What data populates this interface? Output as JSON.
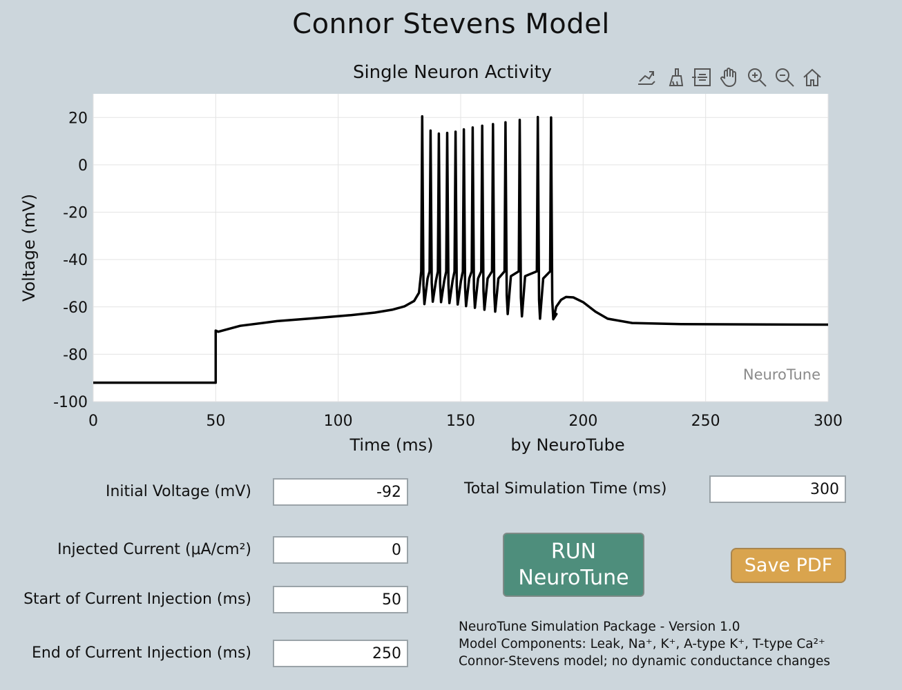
{
  "app": {
    "title": "Connor Stevens Model"
  },
  "plot": {
    "title": "Single Neuron Activity",
    "watermark": "NeuroTune",
    "credit": "by NeuroTube",
    "toolbar": [
      "export-icon",
      "brush-icon",
      "datatip-icon",
      "pan-hand-icon",
      "zoom-in-icon",
      "zoom-out-icon",
      "home-icon"
    ]
  },
  "chart_data": {
    "type": "line",
    "title": "Single Neuron Activity",
    "xlabel": "Time (ms)",
    "ylabel": "Voltage (mV)",
    "xlim": [
      0,
      300
    ],
    "ylim": [
      -100,
      30
    ],
    "xticks": [
      0,
      50,
      100,
      150,
      200,
      250,
      300
    ],
    "yticks": [
      20,
      0,
      -20,
      -40,
      -60,
      -80,
      -100
    ],
    "grid": true,
    "color": "#000000",
    "series": [
      {
        "baseline": [
          [
            0,
            -92
          ],
          [
            50,
            -92
          ],
          [
            50,
            -70
          ],
          [
            51,
            -70.5
          ],
          [
            60,
            -68
          ],
          [
            75,
            -66
          ],
          [
            90,
            -64.8
          ],
          [
            105,
            -63.5
          ],
          [
            115,
            -62.4
          ],
          [
            122,
            -61.2
          ],
          [
            127,
            -59.8
          ],
          [
            131,
            -57.5
          ],
          [
            133,
            -54
          ]
        ],
        "spikes": [
          {
            "t": 134.3,
            "peak": 20.5,
            "trough": -58.8,
            "next_rise": -48
          },
          {
            "t": 137.7,
            "peak": 14.5,
            "trough": -57.8,
            "next_rise": -49
          },
          {
            "t": 141.1,
            "peak": 13.2,
            "trough": -58.0,
            "next_rise": -49
          },
          {
            "t": 144.5,
            "peak": 13.5,
            "trough": -58.4,
            "next_rise": -49
          },
          {
            "t": 147.9,
            "peak": 14.0,
            "trough": -59.0,
            "next_rise": -49
          },
          {
            "t": 151.3,
            "peak": 15.0,
            "trough": -59.7,
            "next_rise": -48
          },
          {
            "t": 154.9,
            "peak": 15.8,
            "trough": -60.4,
            "next_rise": -48
          },
          {
            "t": 158.8,
            "peak": 16.5,
            "trough": -61.2,
            "next_rise": -48
          },
          {
            "t": 163.2,
            "peak": 17.2,
            "trough": -62.0,
            "next_rise": -48
          },
          {
            "t": 168.3,
            "peak": 18.0,
            "trough": -63.0,
            "next_rise": -47
          },
          {
            "t": 174.1,
            "peak": 19.0,
            "trough": -64.0,
            "next_rise": -47
          },
          {
            "t": 181.5,
            "peak": 20.2,
            "trough": -65.0,
            "next_rise": -48
          },
          {
            "t": 186.9,
            "peak": 20.0,
            "trough": -65.2,
            "next_rise": -63
          }
        ],
        "tail": [
          [
            187.8,
            -65.2
          ],
          [
            189,
            -60
          ],
          [
            191,
            -57
          ],
          [
            193,
            -55.8
          ],
          [
            196,
            -56
          ],
          [
            200,
            -58
          ],
          [
            205,
            -62
          ],
          [
            210,
            -65
          ],
          [
            220,
            -66.8
          ],
          [
            240,
            -67.3
          ],
          [
            300,
            -67.5
          ]
        ]
      }
    ]
  },
  "fields": {
    "initial_voltage": {
      "label": "Initial Voltage (mV)",
      "value": "-92"
    },
    "injected_current": {
      "label": "Injected Current (μA/cm²)",
      "value": "0"
    },
    "start_injection": {
      "label": "Start of Current Injection (ms)",
      "value": "50"
    },
    "end_injection": {
      "label": "End of Current Injection (ms)",
      "value": "250"
    },
    "total_time": {
      "label": "Total Simulation Time (ms)",
      "value": "300"
    }
  },
  "buttons": {
    "run_line1": "RUN",
    "run_line2": "NeuroTune",
    "save": "Save PDF"
  },
  "colors": {
    "background": "#ccd6dc",
    "run_button": "#4e8e7c",
    "save_button": "#d9a44e"
  },
  "info": {
    "line1": "NeuroTune Simulation Package - Version 1.0",
    "line2": "Model Components: Leak, Na⁺, K⁺, A-type K⁺, T-type Ca²⁺",
    "line3": "Connor-Stevens model; no dynamic conductance changes"
  }
}
